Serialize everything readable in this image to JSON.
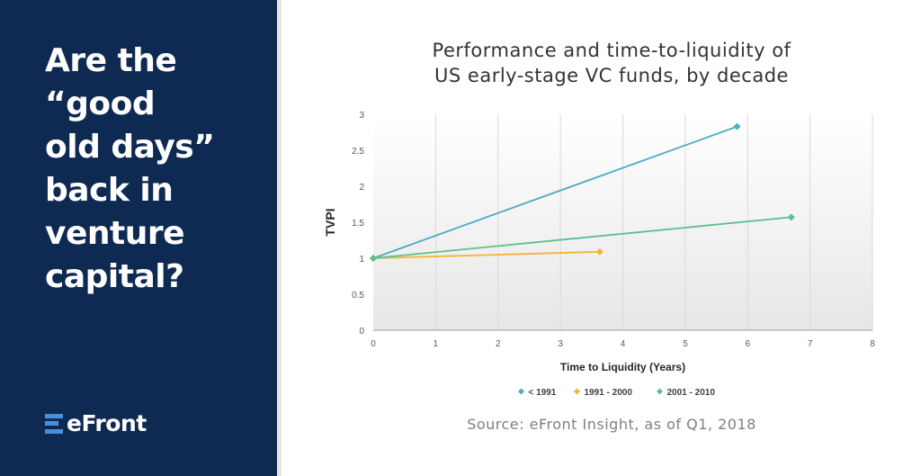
{
  "headline": {
    "lines": [
      "Are the",
      "“good",
      "old days”",
      "back in",
      "venture",
      "capital?"
    ]
  },
  "logo": {
    "text": "eFront",
    "mark_color": "#4a90d9"
  },
  "colors": {
    "sidebar_bg": "#0f2a52"
  },
  "chart_data": {
    "type": "line",
    "title": "Performance and time-to-liquidity of US early-stage VC funds, by decade",
    "title_lines": [
      "Performance and time-to-liquidity of",
      "US early-stage VC funds, by decade"
    ],
    "xlabel": "Time to Liquidity (Years)",
    "ylabel": "TVPI",
    "xlim": [
      0,
      8
    ],
    "ylim": [
      0,
      3
    ],
    "x_ticks": [
      0,
      1,
      2,
      3,
      4,
      5,
      6,
      7,
      8
    ],
    "y_ticks": [
      0,
      0.5,
      1,
      1.5,
      2,
      2.5,
      3
    ],
    "x_tick_labels": [
      "0",
      "1",
      "2",
      "3",
      "4",
      "5",
      "6",
      "7",
      "8"
    ],
    "y_tick_labels": [
      "0",
      "0.5",
      "1",
      "1.5",
      "2",
      "2.5",
      "3"
    ],
    "grid": "vertical",
    "legend_position": "bottom",
    "series": [
      {
        "name": "< 1991",
        "color": "#4bacc6",
        "points": [
          [
            0,
            1.0
          ],
          [
            5.83,
            2.83
          ]
        ]
      },
      {
        "name": "1991 -  2000",
        "color": "#f6b335",
        "points": [
          [
            0,
            1.0
          ],
          [
            3.63,
            1.09
          ]
        ]
      },
      {
        "name": "2001 - 2010",
        "color": "#5cbf8f",
        "points": [
          [
            0,
            1.0
          ],
          [
            6.7,
            1.57
          ]
        ]
      }
    ]
  },
  "source": "Source: eFront Insight, as of Q1, 2018"
}
